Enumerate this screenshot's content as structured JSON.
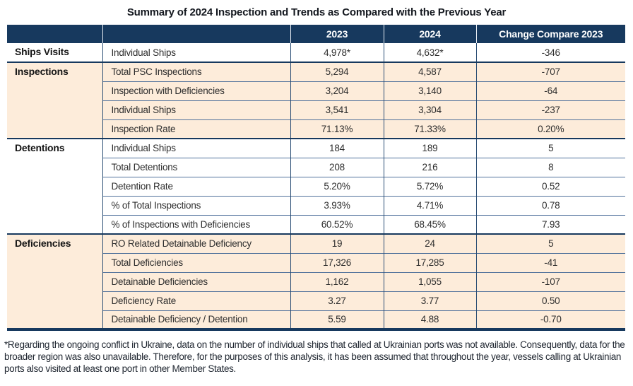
{
  "title": "Summary of 2024 Inspection and Trends as Compared with the Previous Year",
  "colors": {
    "header_navy": "#17395e",
    "group_band_peach": "#fdecda",
    "grid_line": "#50719b"
  },
  "header": {
    "col_group": "",
    "col_item": "",
    "col_2023": "2023",
    "col_2024": "2024",
    "col_change": "Change Compare 2023"
  },
  "groups": [
    {
      "label": "Ships Visits",
      "rows": [
        {
          "item": "Individual Ships",
          "y2023": "4,978*",
          "y2024": "4,632*",
          "change": "-346"
        }
      ]
    },
    {
      "label": "Inspections",
      "rows": [
        {
          "item": "Total PSC Inspections",
          "y2023": "5,294",
          "y2024": "4,587",
          "change": "-707"
        },
        {
          "item": "Inspection with Deficiencies",
          "y2023": "3,204",
          "y2024": "3,140",
          "change": "-64"
        },
        {
          "item": "Individual Ships",
          "y2023": "3,541",
          "y2024": "3,304",
          "change": "-237"
        },
        {
          "item": "Inspection Rate",
          "y2023": "71.13%",
          "y2024": "71.33%",
          "change": "0.20%"
        }
      ]
    },
    {
      "label": "Detentions",
      "rows": [
        {
          "item": "Individual Ships",
          "y2023": "184",
          "y2024": "189",
          "change": "5"
        },
        {
          "item": "Total Detentions",
          "y2023": "208",
          "y2024": "216",
          "change": "8"
        },
        {
          "item": "Detention Rate",
          "y2023": "5.20%",
          "y2024": "5.72%",
          "change": "0.52"
        },
        {
          "item": "% of Total Inspections",
          "y2023": "3.93%",
          "y2024": "4.71%",
          "change": "0.78"
        },
        {
          "item": "% of Inspections with Deficiencies",
          "y2023": "60.52%",
          "y2024": "68.45%",
          "change": "7.93"
        }
      ]
    },
    {
      "label": "Deficiencies",
      "rows": [
        {
          "item": "RO Related Detainable Deficiency",
          "y2023": "19",
          "y2024": "24",
          "change": "5"
        },
        {
          "item": "Total Deficiencies",
          "y2023": "17,326",
          "y2024": "17,285",
          "change": "-41"
        },
        {
          "item": "Detainable Deficiencies",
          "y2023": "1,162",
          "y2024": "1,055",
          "change": "-107"
        },
        {
          "item": "Deficiency Rate",
          "y2023": "3.27",
          "y2024": "3.77",
          "change": "0.50"
        },
        {
          "item": "Detainable Deficiency / Detention",
          "y2023": "5.59",
          "y2024": "4.88",
          "change": "-0.70"
        }
      ]
    }
  ],
  "footnote": "*Regarding the ongoing conflict in Ukraine, data on the number of individual ships that called at Ukrainian ports was not available. Consequently, data for the broader region was also unavailable. Therefore, for the purposes of this analysis, it has been assumed that throughout the year, vessels calling at Ukrainian ports also visited at least one port in other Member States."
}
